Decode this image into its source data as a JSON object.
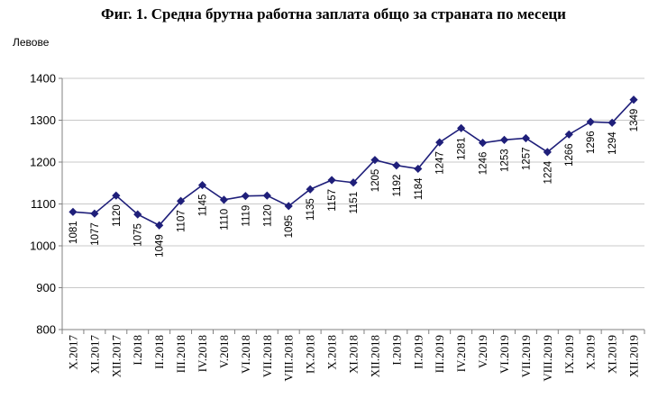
{
  "title": "Фиг. 1. Средна брутна работна заплата общо за страната по месеци",
  "chart_data": {
    "type": "line",
    "title": "Фиг. 1. Средна брутна работна заплата общо за страната по месеци",
    "ylabel": "Левове",
    "xlabel": "",
    "ylim": [
      800,
      1400
    ],
    "yticks": [
      800,
      900,
      1000,
      1100,
      1200,
      1300,
      1400
    ],
    "grid": true,
    "legend": "none",
    "categories": [
      "X.2017",
      "XI.2017",
      "XII.2017",
      "I.2018",
      "II.2018",
      "III.2018",
      "IV.2018",
      "V.2018",
      "VI.2018",
      "VII.2018",
      "VIII.2018",
      "IX.2018",
      "X.2018",
      "XI.2018",
      "XII.2018",
      "I.2019",
      "II.2019",
      "III.2019",
      "IV.2019",
      "V.2019",
      "VI.2019",
      "VII.2019",
      "VIII.2019",
      "IX.2019",
      "X.2019",
      "XI.2019",
      "XII.2019"
    ],
    "series": [
      {
        "values": [
          1081,
          1077,
          1120,
          1075,
          1049,
          1107,
          1145,
          1110,
          1119,
          1120,
          1095,
          1135,
          1157,
          1151,
          1205,
          1192,
          1184,
          1247,
          1281,
          1246,
          1253,
          1257,
          1224,
          1266,
          1296,
          1294,
          1349
        ]
      }
    ],
    "colors": {
      "line": "#1f1f7a",
      "grid": "#c8c8c8",
      "axis": "#808080"
    }
  }
}
